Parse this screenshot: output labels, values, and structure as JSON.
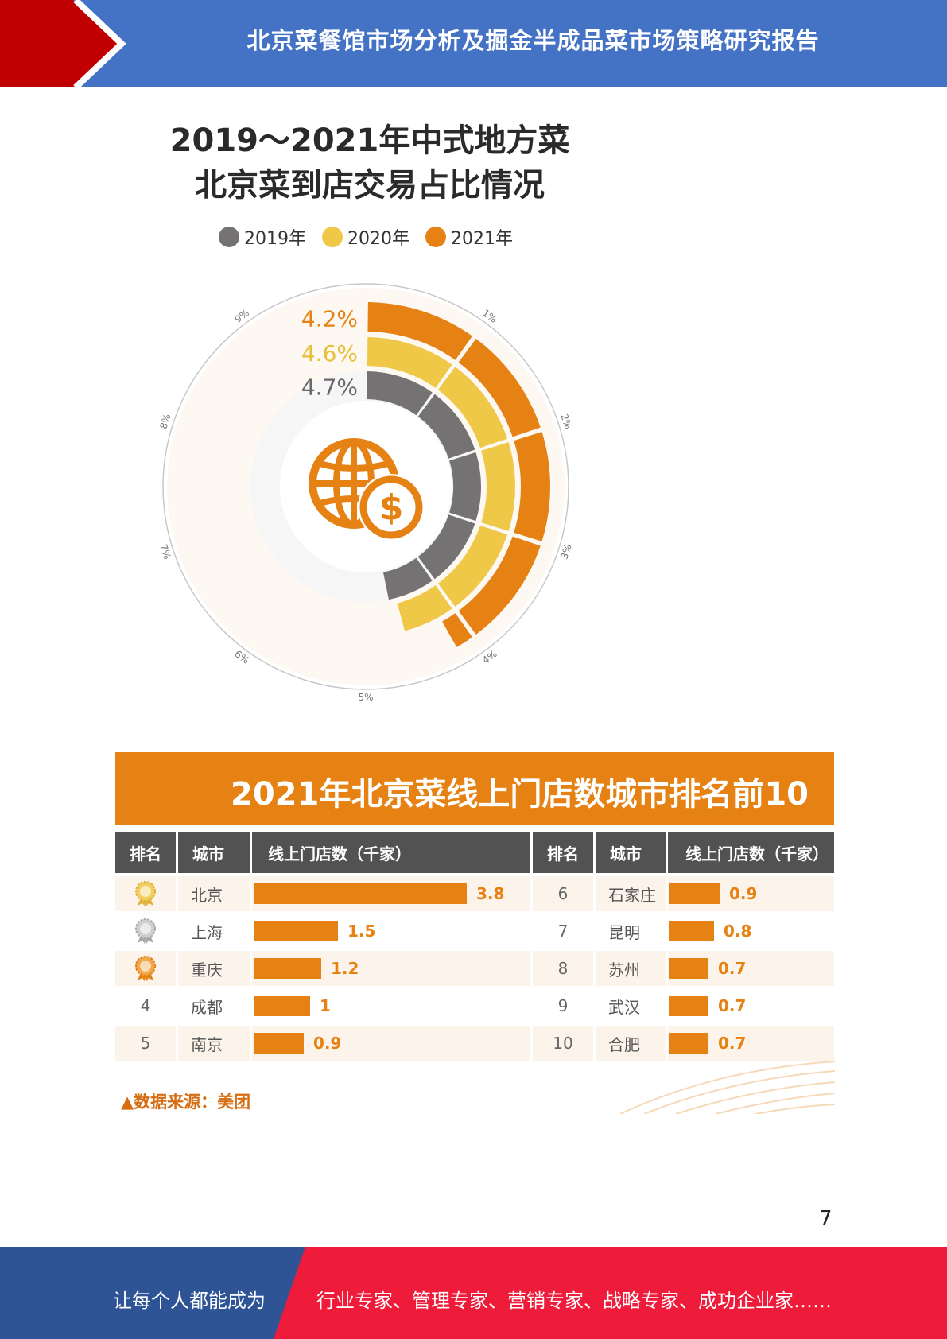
{
  "header": {
    "title": "北京菜餐馆市场分析及掘金半成品菜市场策略研究报告"
  },
  "donut_chart": {
    "title_line1": "2019～2021年中式地方菜",
    "title_line2": "北京菜到店交易占比情况",
    "legend": [
      {
        "label": "2019年",
        "color": "#757274"
      },
      {
        "label": "2020年",
        "color": "#f0c848"
      },
      {
        "label": "2021年",
        "color": "#e68214"
      }
    ],
    "ticks": [
      "1%",
      "2%",
      "3%",
      "4%",
      "5%",
      "6%",
      "7%",
      "8%",
      "9%"
    ],
    "center_icon": "globe-dollar-icon"
  },
  "chart_data": [
    {
      "type": "pie",
      "title": "2019～2021年中式地方菜 北京菜到店交易占比情况",
      "series": [
        {
          "name": "2019年",
          "value": 4.7,
          "label": "4.7%",
          "color": "#757274"
        },
        {
          "name": "2020年",
          "value": 4.6,
          "label": "4.6%",
          "color": "#f0c848"
        },
        {
          "name": "2021年",
          "value": 4.2,
          "label": "4.2%",
          "color": "#e68214"
        }
      ],
      "axis_max": 10,
      "tick_labels": [
        "1%",
        "2%",
        "3%",
        "4%",
        "5%",
        "6%",
        "7%",
        "8%",
        "9%"
      ]
    },
    {
      "type": "bar",
      "title": "2021年北京菜线上门店数城市排名前10",
      "categories": [
        "北京",
        "上海",
        "重庆",
        "成都",
        "南京",
        "石家庄",
        "昆明",
        "苏州",
        "武汉",
        "合肥"
      ],
      "values": [
        3.8,
        1.5,
        1.2,
        1,
        0.9,
        0.9,
        0.8,
        0.7,
        0.7,
        0.7
      ],
      "ylabel": "线上门店数（千家）"
    }
  ],
  "ranking_table": {
    "title": "2021年北京菜线上门店数城市排名前10",
    "headers": {
      "rank": "排名",
      "city": "城市",
      "stores": "线上门店数（千家）"
    },
    "left_rows": [
      {
        "rank": "1",
        "city": "北京",
        "value": 3.8,
        "label": "3.8",
        "medal": "gold-medal-icon"
      },
      {
        "rank": "2",
        "city": "上海",
        "value": 1.5,
        "label": "1.5",
        "medal": "silver-medal-icon"
      },
      {
        "rank": "3",
        "city": "重庆",
        "value": 1.2,
        "label": "1.2",
        "medal": "bronze-medal-icon"
      },
      {
        "rank": "4",
        "city": "成都",
        "value": 1,
        "label": "1"
      },
      {
        "rank": "5",
        "city": "南京",
        "value": 0.9,
        "label": "0.9"
      }
    ],
    "right_rows": [
      {
        "rank": "6",
        "city": "石家庄",
        "value": 0.9,
        "label": "0.9"
      },
      {
        "rank": "7",
        "city": "昆明",
        "value": 0.8,
        "label": "0.8"
      },
      {
        "rank": "8",
        "city": "苏州",
        "value": 0.7,
        "label": "0.7"
      },
      {
        "rank": "9",
        "city": "武汉",
        "value": 0.7,
        "label": "0.7"
      },
      {
        "rank": "10",
        "city": "合肥",
        "value": 0.7,
        "label": "0.7"
      }
    ],
    "source": "▲数据来源：美团"
  },
  "page_number": "7",
  "footer": {
    "left": "让每个人都能成为",
    "right": "行业专家、管理专家、营销专家、战略专家、成功企业家……"
  },
  "colors": {
    "accent": "#e68214",
    "header_blue": "#4472c4",
    "footer_red": "#ee1c3a",
    "footer_blue": "#2e5496"
  }
}
